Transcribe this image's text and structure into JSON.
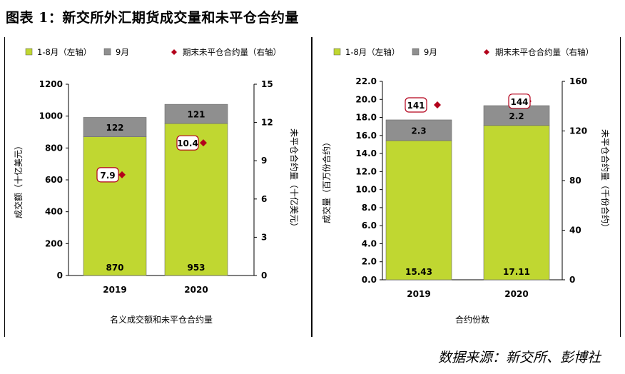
{
  "figure_title": "图表 1：新交所外汇期货成交量和未平仓合约量",
  "source": "数据来源：新交所、彭博社",
  "colors": {
    "jan_aug": "#c0d731",
    "sep": "#8f8f8f",
    "oi": "#b3001b"
  },
  "chart_data": [
    {
      "type": "bar",
      "stacked": true,
      "title": "名义成交额和未平仓合约量",
      "xlabel": "",
      "ylabel": "成交额（十亿美元）",
      "y2label": "未平仓合约量（十亿美元）",
      "legend": {
        "position": "top",
        "items": [
          "1-8月（左轴）",
          "9月",
          "期末未平仓合约量（右轴）"
        ]
      },
      "categories": [
        "2019",
        "2020"
      ],
      "series": [
        {
          "name": "1-8月（左轴）",
          "values": [
            870,
            953
          ],
          "labels": [
            "870",
            "953"
          ]
        },
        {
          "name": "9月",
          "values": [
            122,
            121
          ],
          "labels": [
            "122",
            "121"
          ]
        },
        {
          "name": "期末未平仓合约量（右轴）",
          "axis": "right",
          "values": [
            7.9,
            10.4
          ],
          "labels": [
            "7.9",
            "10.4"
          ]
        }
      ],
      "ylim": [
        0,
        1200
      ],
      "yticks": [
        "0",
        "200",
        "400",
        "600",
        "800",
        "1000",
        "1200"
      ],
      "y2lim": [
        0,
        15
      ],
      "y2ticks": [
        "0",
        "3",
        "6",
        "9",
        "12",
        "15"
      ],
      "grid": false
    },
    {
      "type": "bar",
      "stacked": true,
      "title": "合约份数",
      "xlabel": "",
      "ylabel": "成交量（百万份合约）",
      "y2label": "未平仓合约量（千份合约）",
      "legend": {
        "position": "top",
        "items": [
          "1-8月（左轴）",
          "9月",
          "期末未平仓合约量（右轴）"
        ]
      },
      "categories": [
        "2019",
        "2020"
      ],
      "series": [
        {
          "name": "1-8月（左轴）",
          "values": [
            15.43,
            17.11
          ],
          "labels": [
            "15.43",
            "17.11"
          ]
        },
        {
          "name": "9月",
          "values": [
            2.3,
            2.2
          ],
          "labels": [
            "2.3",
            "2.2"
          ]
        },
        {
          "name": "期末未平仓合约量（右轴）",
          "axis": "right",
          "values": [
            141,
            144
          ],
          "labels": [
            "141",
            "144"
          ]
        }
      ],
      "ylim": [
        0,
        22
      ],
      "yticks": [
        "0.0",
        "2.0",
        "4.0",
        "6.0",
        "8.0",
        "10.0",
        "12.0",
        "14.0",
        "16.0",
        "18.0",
        "20.0",
        "22.0"
      ],
      "y2lim": [
        0,
        160
      ],
      "y2ticks": [
        "0",
        "40",
        "80",
        "120",
        "160"
      ],
      "grid": false
    }
  ]
}
